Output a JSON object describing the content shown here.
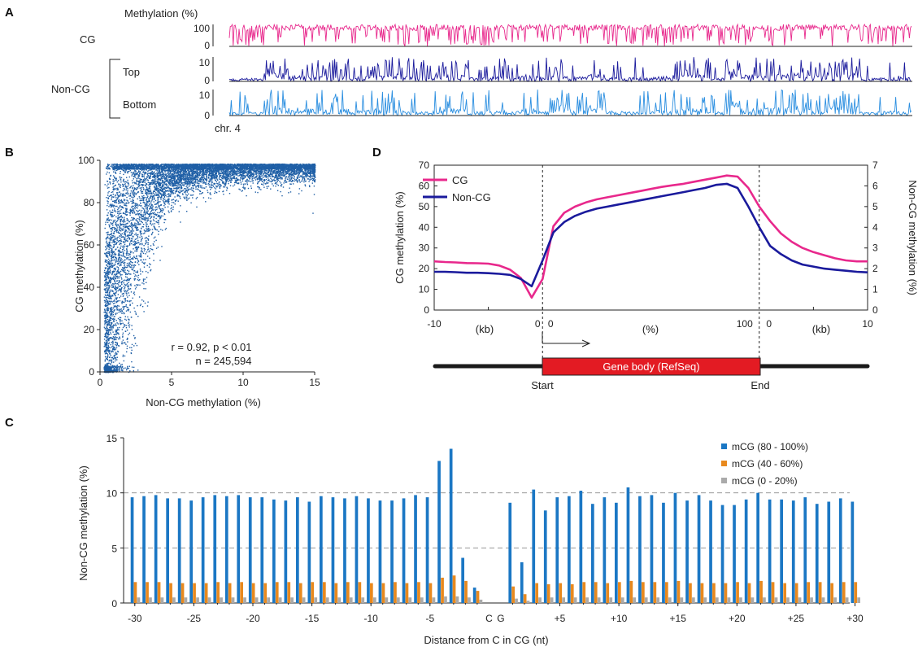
{
  "figure": {
    "panels": {
      "A": "A",
      "B": "B",
      "C": "C",
      "D": "D"
    }
  },
  "chart_data": [
    {
      "panel": "A",
      "type": "line",
      "ylabel": "Methylation (%)",
      "xlabel": "chr. 4",
      "tracks": [
        {
          "group": "CG",
          "name": "",
          "ymax": 100,
          "ticks": [
            "100",
            "0"
          ],
          "color": "#e8288c"
        },
        {
          "group": "Non-CG",
          "name": "Top",
          "ymax": 10,
          "ticks": [
            "10",
            "0"
          ],
          "color": "#1a1a9c"
        },
        {
          "group": "",
          "name": "Bottom",
          "ymax": 10,
          "ticks": [
            "10",
            "0"
          ],
          "color": "#2a8ee0"
        }
      ],
      "group_labels": [
        "CG",
        "Non-CG"
      ]
    },
    {
      "panel": "B",
      "type": "scatter",
      "xlabel": "Non-CG methylation (%)",
      "ylabel": "CG methylation (%)",
      "xlim": [
        0,
        15
      ],
      "ylim": [
        0,
        100
      ],
      "xticks": [
        0,
        5,
        10,
        15
      ],
      "yticks": [
        0,
        20,
        40,
        60,
        80,
        100
      ],
      "color": "#1f5fa6",
      "annotations": [
        "r = 0.92, p < 0.01",
        "n = 245,594"
      ],
      "n_points": 245594
    },
    {
      "panel": "C",
      "type": "bar",
      "xlabel": "Distance from C in CG (nt)",
      "ylabel": "Non-CG methylation (%)",
      "ylim": [
        0,
        15
      ],
      "yticks": [
        0,
        5,
        10,
        15
      ],
      "gridlines": [
        5,
        10
      ],
      "center_labels": [
        "C",
        "G"
      ],
      "xtick_labels": [
        "-30",
        "-25",
        "-20",
        "-15",
        "-10",
        "-5",
        "+5",
        "+10",
        "+15",
        "+20",
        "+25",
        "+30"
      ],
      "positions": [
        -30,
        -29,
        -28,
        -27,
        -26,
        -25,
        -24,
        -23,
        -22,
        -21,
        -20,
        -19,
        -18,
        -17,
        -16,
        -15,
        -14,
        -13,
        -12,
        -11,
        -10,
        -9,
        -8,
        -7,
        -6,
        -5,
        -4,
        -3,
        -2,
        -1,
        2,
        3,
        4,
        5,
        6,
        7,
        8,
        9,
        10,
        11,
        12,
        13,
        14,
        15,
        16,
        17,
        18,
        19,
        20,
        21,
        22,
        23,
        24,
        25,
        26,
        27,
        28,
        29,
        30,
        31
      ],
      "series": [
        {
          "name": "mCG (80 - 100%)",
          "color": "#1b77c4",
          "values": [
            9.6,
            9.7,
            9.8,
            9.5,
            9.5,
            9.3,
            9.6,
            9.8,
            9.7,
            9.8,
            9.6,
            9.6,
            9.4,
            9.3,
            9.6,
            9.2,
            9.7,
            9.6,
            9.5,
            9.7,
            9.5,
            9.3,
            9.3,
            9.5,
            9.8,
            9.6,
            12.9,
            14.0,
            4.1,
            1.4,
            9.1,
            3.7,
            10.3,
            8.4,
            9.6,
            9.7,
            10.2,
            9.0,
            9.6,
            9.1,
            10.5,
            9.7,
            9.8,
            9.1,
            10.0,
            9.3,
            9.8,
            9.3,
            8.9,
            8.9,
            9.4,
            10.0,
            9.4,
            9.4,
            9.3,
            9.6,
            9.0,
            9.2,
            9.5,
            9.2
          ]
        },
        {
          "name": "mCG (40 - 60%)",
          "color": "#e8891e",
          "values": [
            1.9,
            1.9,
            1.9,
            1.8,
            1.8,
            1.8,
            1.8,
            1.9,
            1.8,
            1.9,
            1.8,
            1.8,
            1.9,
            1.9,
            1.8,
            1.9,
            1.9,
            1.8,
            1.9,
            1.9,
            1.8,
            1.8,
            1.9,
            1.8,
            1.9,
            1.8,
            2.3,
            2.5,
            2.0,
            1.1,
            1.5,
            0.8,
            1.8,
            1.7,
            1.8,
            1.7,
            1.9,
            1.9,
            1.8,
            1.9,
            2.0,
            1.9,
            1.9,
            1.9,
            2.0,
            1.8,
            1.8,
            1.8,
            1.8,
            1.9,
            1.8,
            2.0,
            1.9,
            1.8,
            1.8,
            1.9,
            1.9,
            1.8,
            1.9,
            1.9
          ]
        },
        {
          "name": "mCG (0 - 20%)",
          "color": "#aaaaaa",
          "values": [
            0.5,
            0.5,
            0.5,
            0.5,
            0.5,
            0.5,
            0.5,
            0.5,
            0.5,
            0.5,
            0.5,
            0.5,
            0.5,
            0.5,
            0.5,
            0.5,
            0.5,
            0.5,
            0.5,
            0.5,
            0.5,
            0.5,
            0.5,
            0.5,
            0.5,
            0.5,
            0.6,
            0.6,
            0.5,
            0.3,
            0.4,
            0.2,
            0.5,
            0.5,
            0.5,
            0.5,
            0.5,
            0.5,
            0.5,
            0.5,
            0.5,
            0.5,
            0.5,
            0.5,
            0.5,
            0.5,
            0.5,
            0.5,
            0.5,
            0.5,
            0.5,
            0.5,
            0.5,
            0.5,
            0.5,
            0.5,
            0.5,
            0.5,
            0.5,
            0.5
          ]
        }
      ],
      "legend": "top-right"
    },
    {
      "panel": "D",
      "type": "line",
      "ylabel": "CG methylation (%)",
      "y2label": "Non-CG methylation (%)",
      "ylim": [
        0,
        70
      ],
      "y2lim": [
        0,
        7
      ],
      "yticks": [
        0,
        10,
        20,
        30,
        40,
        50,
        60,
        70
      ],
      "y2ticks": [
        0,
        1,
        2,
        3,
        4,
        5,
        6,
        7
      ],
      "xtick_labels": [
        "-10",
        "0",
        "0",
        "100",
        "0",
        "10"
      ],
      "segment_units": [
        "(kb)",
        "(%)",
        "(kb)"
      ],
      "segments": [
        "upstream",
        "gene-body",
        "downstream"
      ],
      "x": [
        0,
        1,
        2,
        3,
        4,
        5,
        6,
        7,
        8,
        9,
        10,
        11,
        12,
        13,
        14,
        15,
        16,
        17,
        18,
        19,
        20,
        21,
        22,
        23,
        24,
        25,
        26,
        27,
        28,
        29,
        30,
        31,
        32,
        33,
        34,
        35,
        36,
        37,
        38,
        39,
        40
      ],
      "series": [
        {
          "name": "CG",
          "color": "#e8288c",
          "axis": "left",
          "values": [
            23.5,
            23.2,
            23,
            22.7,
            22.6,
            22.4,
            21.5,
            19.5,
            15.5,
            6.0,
            15.0,
            40.5,
            47.0,
            50.0,
            52.0,
            53.5,
            54.5,
            55.5,
            56.5,
            57.5,
            58.5,
            59.5,
            60.3,
            61.0,
            62.0,
            63.0,
            64.0,
            65.0,
            64.5,
            59.0,
            50.0,
            43.0,
            37.0,
            33.0,
            30.0,
            28.0,
            26.5,
            25.0,
            24.0,
            23.5,
            23.5
          ]
        },
        {
          "name": "Non-CG",
          "color": "#1a1a9c",
          "axis": "right",
          "values": [
            1.85,
            1.85,
            1.83,
            1.8,
            1.8,
            1.78,
            1.75,
            1.7,
            1.5,
            1.15,
            2.4,
            3.75,
            4.25,
            4.55,
            4.75,
            4.9,
            5.0,
            5.1,
            5.2,
            5.3,
            5.4,
            5.5,
            5.6,
            5.7,
            5.8,
            5.9,
            6.05,
            6.1,
            5.9,
            5.0,
            4.0,
            3.1,
            2.7,
            2.4,
            2.2,
            2.1,
            2.0,
            1.95,
            1.9,
            1.85,
            1.82
          ]
        }
      ],
      "legend": "top-left",
      "gene_diagram": {
        "label": "Gene body (RefSeq)",
        "start": "Start",
        "end": "End",
        "color": "#e31b23"
      }
    }
  ]
}
